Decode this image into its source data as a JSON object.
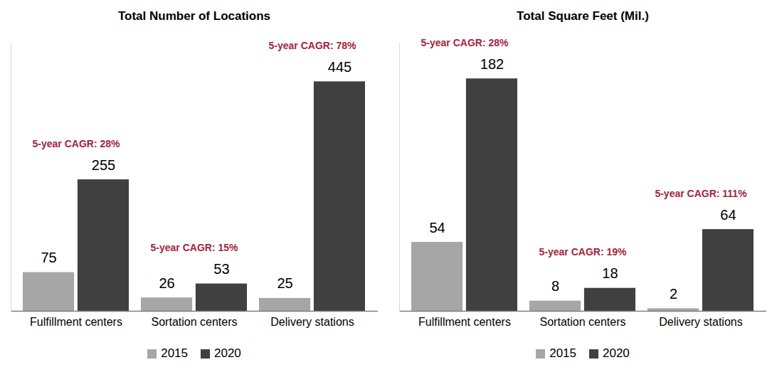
{
  "chart_data": [
    {
      "type": "bar",
      "title": "Total Number of Locations",
      "categories": [
        "Fulfillment centers",
        "Sortation centers",
        "Delivery stations"
      ],
      "series": [
        {
          "name": "2015",
          "color": "#a6a6a6",
          "values": [
            75,
            26,
            25
          ]
        },
        {
          "name": "2020",
          "color": "#404040",
          "values": [
            255,
            53,
            445
          ]
        }
      ],
      "ylim": [
        0,
        520
      ],
      "yticks": [],
      "data_labels": true,
      "tick_labels": "x",
      "legend": "bottom",
      "annotations": [
        {
          "category": "Fulfillment centers",
          "text": "5-year CAGR: 28%"
        },
        {
          "category": "Sortation centers",
          "text": "5-year CAGR: 15%"
        },
        {
          "category": "Delivery stations",
          "text": "5-year CAGR: 78%"
        }
      ]
    },
    {
      "type": "bar",
      "title": "Total Square Feet (Mil.)",
      "categories": [
        "Fulfillment centers",
        "Sortation centers",
        "Delivery stations"
      ],
      "series": [
        {
          "name": "2015",
          "color": "#a6a6a6",
          "values": [
            54,
            8,
            2
          ]
        },
        {
          "name": "2020",
          "color": "#404040",
          "values": [
            182,
            18,
            64
          ]
        }
      ],
      "ylim": [
        0,
        210
      ],
      "yticks": [],
      "data_labels": true,
      "tick_labels": "x",
      "legend": "bottom",
      "annotations": [
        {
          "category": "Fulfillment centers",
          "text": "5-year CAGR: 28%"
        },
        {
          "category": "Sortation centers",
          "text": "5-year CAGR: 19%"
        },
        {
          "category": "Delivery stations",
          "text": "5-year CAGR: 111%"
        }
      ]
    }
  ]
}
